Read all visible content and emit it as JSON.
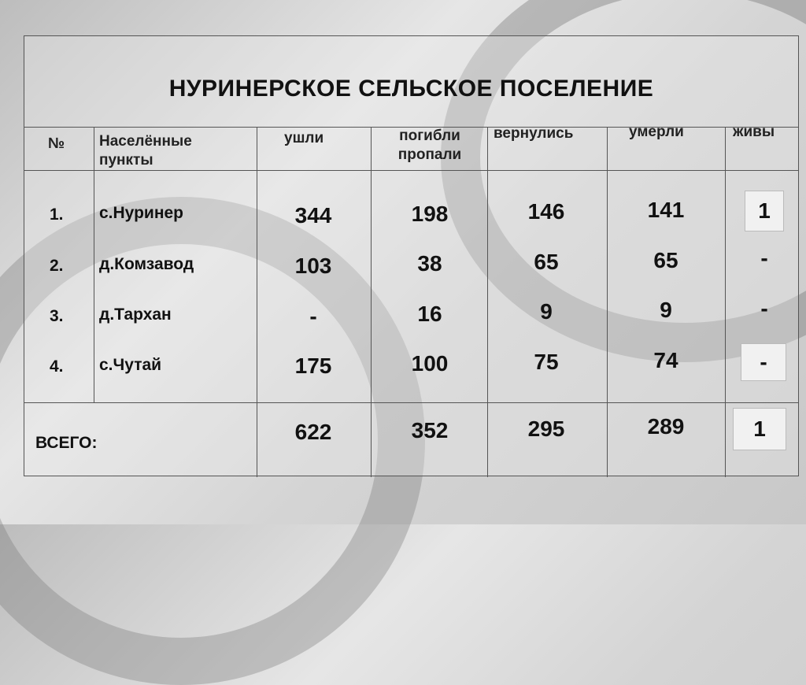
{
  "title": "НУРИНЕРСКОЕ СЕЛЬСКОЕ ПОСЕЛЕНИЕ",
  "headers": [
    "№",
    "Населённые пункты",
    "ушли",
    "погибли пропали",
    "вернулись",
    "умерли",
    "живы"
  ],
  "rows": [
    {
      "no": "1.",
      "place": "с.Нуринер",
      "left": "344",
      "killed_missing": "198",
      "returned": "146",
      "died": "141",
      "alive": "1"
    },
    {
      "no": "2.",
      "place": "д.Комзавод",
      "left": "103",
      "killed_missing": "38",
      "returned": "65",
      "died": "65",
      "alive": "-"
    },
    {
      "no": "3.",
      "place": "д.Тархан",
      "left": "-",
      "killed_missing": "16",
      "returned": "9",
      "died": "9",
      "alive": "-"
    },
    {
      "no": "4.",
      "place": "с.Чутай",
      "left": "175",
      "killed_missing": "100",
      "returned": "75",
      "died": "74",
      "alive": "-"
    }
  ],
  "total": {
    "label": "ВСЕГО:",
    "left": "622",
    "killed_missing": "352",
    "returned": "295",
    "died": "289",
    "alive": "1"
  }
}
